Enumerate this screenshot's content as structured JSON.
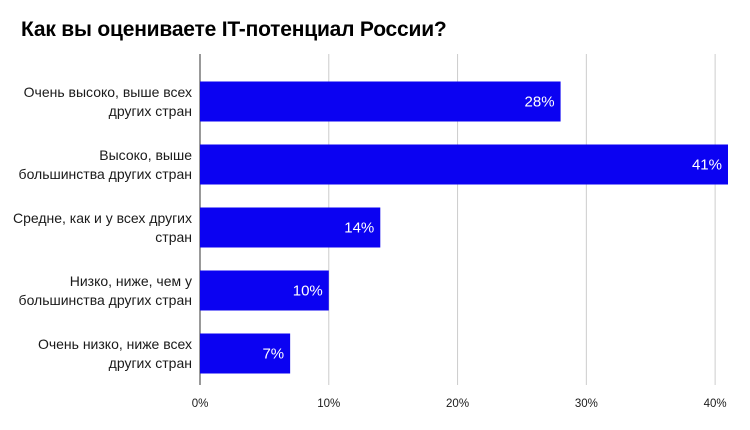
{
  "chart_data": {
    "type": "bar",
    "orientation": "horizontal",
    "title": "Как вы оцениваете IT-потенциал России?",
    "categories": [
      [
        "Очень высоко, выше всех",
        "других стран"
      ],
      [
        "Высоко, выше",
        "большинства других стран"
      ],
      [
        "Средне, как и у всех других",
        "стран"
      ],
      [
        "Низко, ниже, чем у",
        "большинства других стран"
      ],
      [
        "Очень низко, ниже всех",
        "других стран"
      ]
    ],
    "values": [
      28,
      41,
      14,
      10,
      7
    ],
    "value_labels": [
      "28%",
      "41%",
      "14%",
      "10%",
      "7%"
    ],
    "xlim": [
      0,
      41
    ],
    "x_ticks": [
      0,
      10,
      20,
      30,
      40
    ],
    "x_tick_labels": [
      "0%",
      "10%",
      "20%",
      "30%",
      "40%"
    ],
    "xlabel": "",
    "ylabel": "",
    "grid": "vertical",
    "legend": "none",
    "bar_color": "#0b02f2",
    "grid_color": "#cccccc"
  }
}
